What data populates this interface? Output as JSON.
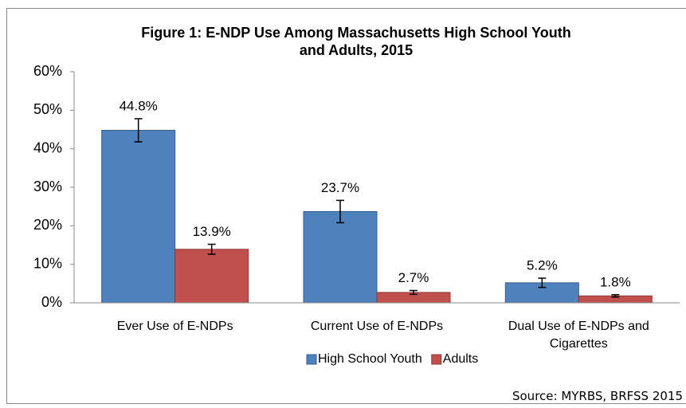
{
  "chart_data": {
    "type": "bar",
    "title": "Figure 1: E-NDP Use Among Massachusetts High School Youth and Adults, 2015",
    "categories": [
      "Ever Use of E-NDPs",
      "Current Use of E-NDPs",
      "Dual Use of E-NDPs and Cigarettes"
    ],
    "series": [
      {
        "name": "High School Youth",
        "color": "#4f81bd",
        "values": [
          44.8,
          23.7,
          5.2
        ],
        "errors": [
          3.0,
          2.9,
          1.2
        ],
        "value_labels": [
          "44.8%",
          "23.7%",
          "5.2%"
        ]
      },
      {
        "name": "Adults",
        "color": "#c0504d",
        "values": [
          13.9,
          2.7,
          1.8
        ],
        "errors": [
          1.3,
          0.5,
          0.3
        ],
        "value_labels": [
          "13.9%",
          "2.7%",
          "1.8%"
        ]
      }
    ],
    "ylim": [
      0,
      60
    ],
    "yticks": [
      {
        "value": 0,
        "label": "0%"
      },
      {
        "value": 10,
        "label": "10%"
      },
      {
        "value": 20,
        "label": "20%"
      },
      {
        "value": 30,
        "label": "30%"
      },
      {
        "value": 40,
        "label": "40%"
      },
      {
        "value": 50,
        "label": "50%"
      },
      {
        "value": 60,
        "label": "60%"
      }
    ],
    "legend": "bottom",
    "source": "Source: MYRBS, BRFSS 2015"
  }
}
